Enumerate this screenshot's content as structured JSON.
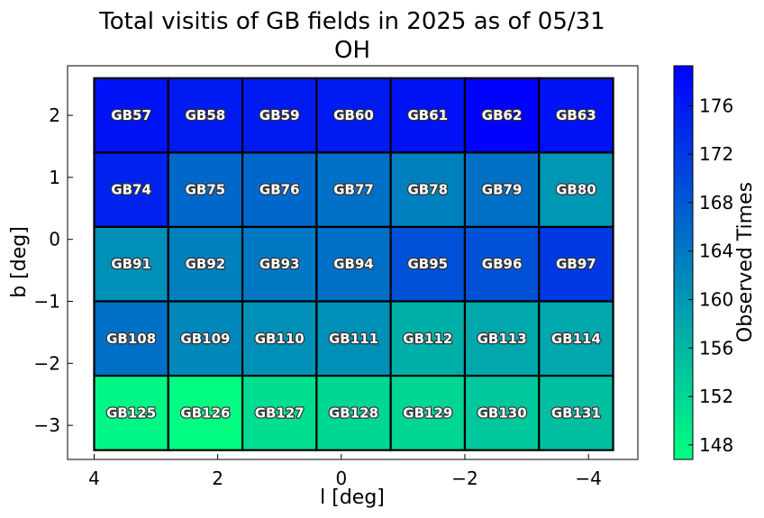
{
  "chart_data": {
    "type": "heatmap",
    "title": "Total visitis of GB fields in 2025 as of 05/31",
    "subtitle": "OH",
    "xlabel": "l [deg]",
    "ylabel": "b [deg]",
    "xlim": [
      4.43,
      -4.8
    ],
    "ylim": [
      -3.55,
      2.8
    ],
    "x_ticks": [
      4,
      2,
      0,
      -2,
      -4
    ],
    "x_tick_labels": [
      "4",
      "2",
      "0",
      "−2",
      "−4"
    ],
    "y_ticks": [
      2,
      1,
      0,
      -1,
      -2,
      -3
    ],
    "y_tick_labels": [
      "2",
      "1",
      "0",
      "−1",
      "−2",
      "−3"
    ],
    "cell_l_edges": [
      4.0,
      2.8,
      1.6,
      0.4,
      -0.8,
      -2.0,
      -3.2,
      -4.4
    ],
    "cell_b_edges": [
      2.6,
      1.4,
      0.2,
      -1.0,
      -2.2,
      -3.4
    ],
    "colorbar": {
      "label": "Observed Times",
      "vmin": 146.8,
      "vmax": 179.3,
      "ticks": [
        148,
        152,
        156,
        160,
        164,
        168,
        172,
        176
      ],
      "colormap": "winter",
      "color_low": "#00ff80",
      "color_high": "#0000ff"
    },
    "cells": [
      {
        "name": "GB57",
        "row": 0,
        "col": 0,
        "value": 177
      },
      {
        "name": "GB58",
        "row": 0,
        "col": 1,
        "value": 176
      },
      {
        "name": "GB59",
        "row": 0,
        "col": 2,
        "value": 176
      },
      {
        "name": "GB60",
        "row": 0,
        "col": 3,
        "value": 176
      },
      {
        "name": "GB61",
        "row": 0,
        "col": 4,
        "value": 177
      },
      {
        "name": "GB62",
        "row": 0,
        "col": 5,
        "value": 179
      },
      {
        "name": "GB63",
        "row": 0,
        "col": 6,
        "value": 177
      },
      {
        "name": "GB74",
        "row": 1,
        "col": 0,
        "value": 175
      },
      {
        "name": "GB75",
        "row": 1,
        "col": 1,
        "value": 166
      },
      {
        "name": "GB76",
        "row": 1,
        "col": 2,
        "value": 166
      },
      {
        "name": "GB77",
        "row": 1,
        "col": 3,
        "value": 165
      },
      {
        "name": "GB78",
        "row": 1,
        "col": 4,
        "value": 163
      },
      {
        "name": "GB79",
        "row": 1,
        "col": 5,
        "value": 165
      },
      {
        "name": "GB80",
        "row": 1,
        "col": 6,
        "value": 160
      },
      {
        "name": "GB91",
        "row": 2,
        "col": 0,
        "value": 161
      },
      {
        "name": "GB92",
        "row": 2,
        "col": 1,
        "value": 163
      },
      {
        "name": "GB93",
        "row": 2,
        "col": 2,
        "value": 164
      },
      {
        "name": "GB94",
        "row": 2,
        "col": 3,
        "value": 165
      },
      {
        "name": "GB95",
        "row": 2,
        "col": 4,
        "value": 169
      },
      {
        "name": "GB96",
        "row": 2,
        "col": 5,
        "value": 169
      },
      {
        "name": "GB97",
        "row": 2,
        "col": 6,
        "value": 172
      },
      {
        "name": "GB108",
        "row": 3,
        "col": 0,
        "value": 165
      },
      {
        "name": "GB109",
        "row": 3,
        "col": 1,
        "value": 162
      },
      {
        "name": "GB110",
        "row": 3,
        "col": 2,
        "value": 161
      },
      {
        "name": "GB111",
        "row": 3,
        "col": 3,
        "value": 161
      },
      {
        "name": "GB112",
        "row": 3,
        "col": 4,
        "value": 157
      },
      {
        "name": "GB113",
        "row": 3,
        "col": 5,
        "value": 158
      },
      {
        "name": "GB114",
        "row": 3,
        "col": 6,
        "value": 158
      },
      {
        "name": "GB125",
        "row": 4,
        "col": 0,
        "value": 148
      },
      {
        "name": "GB126",
        "row": 4,
        "col": 1,
        "value": 147
      },
      {
        "name": "GB127",
        "row": 4,
        "col": 2,
        "value": 151
      },
      {
        "name": "GB128",
        "row": 4,
        "col": 3,
        "value": 152
      },
      {
        "name": "GB129",
        "row": 4,
        "col": 4,
        "value": 152
      },
      {
        "name": "GB130",
        "row": 4,
        "col": 5,
        "value": 154
      },
      {
        "name": "GB131",
        "row": 4,
        "col": 6,
        "value": 155
      }
    ]
  }
}
